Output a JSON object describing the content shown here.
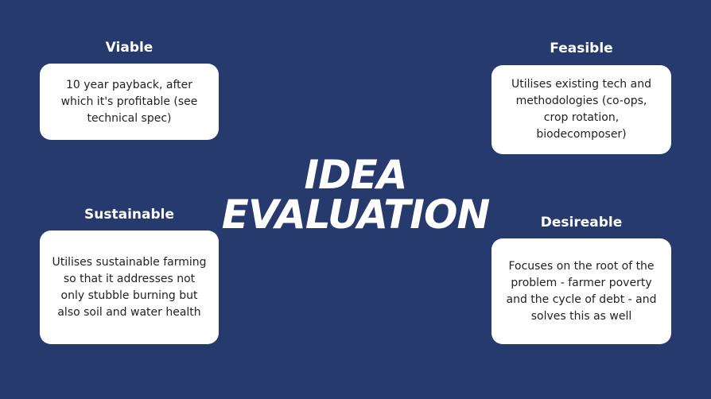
{
  "colors": {
    "background": "#263a6e",
    "card": "#ffffff",
    "heading_text": "#ffffff",
    "body_text": "#222222"
  },
  "title": {
    "line1": "IDEA",
    "line2": "EVALUATION"
  },
  "viable": {
    "heading": "Viable",
    "text": "10 year payback, after which it's profitable (see technical spec)"
  },
  "feasible": {
    "heading": "Feasible",
    "text": "Utilises existing tech and methodologies (co-ops, crop rotation, biodecomposer)"
  },
  "sustainable": {
    "heading": "Sustainable",
    "text": "Utilises sustainable farming so that it addresses not only stubble burning but also soil and water health"
  },
  "desireable": {
    "heading": "Desireable",
    "text": "Focuses on the root of the problem - farmer poverty and the cycle of debt - and solves this as well"
  }
}
